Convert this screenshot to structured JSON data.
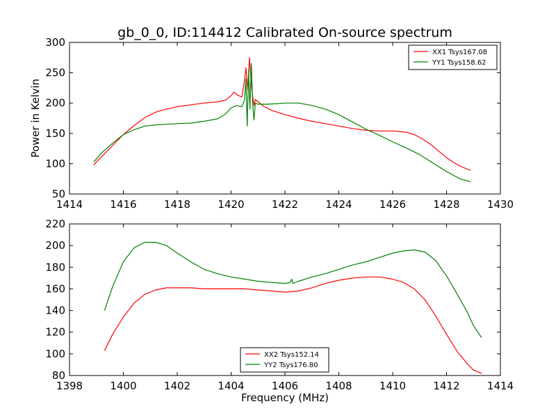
{
  "figure": {
    "title": "gb_0_0, ID:114412 Calibrated On-source spectrum"
  },
  "chart_data": [
    {
      "type": "line",
      "title": "gb_0_0, ID:114412 Calibrated On-source spectrum",
      "xlabel": "",
      "ylabel": "Power in Kelvin",
      "xlim": [
        1414,
        1430
      ],
      "ylim": [
        50,
        300
      ],
      "xticks": [
        1414,
        1416,
        1418,
        1420,
        1422,
        1424,
        1426,
        1428,
        1430
      ],
      "yticks": [
        50,
        100,
        150,
        200,
        250,
        300
      ],
      "grid": false,
      "legend_position": "top-right",
      "series": [
        {
          "name": "XX1 Tsys167.08",
          "color": "#ff0000",
          "x": [
            1414.9,
            1415.2,
            1415.6,
            1416.0,
            1416.4,
            1416.8,
            1417.2,
            1417.6,
            1418.0,
            1418.5,
            1419.0,
            1419.5,
            1419.8,
            1420.0,
            1420.1,
            1420.25,
            1420.4,
            1420.5,
            1420.55,
            1420.62,
            1420.68,
            1420.75,
            1420.8,
            1420.85,
            1420.9,
            1421.0,
            1421.2,
            1421.5,
            1422.0,
            1422.5,
            1423.0,
            1423.5,
            1424.0,
            1424.5,
            1425.0,
            1425.5,
            1426.0,
            1426.5,
            1426.8,
            1427.1,
            1427.4,
            1427.7,
            1428.0,
            1428.3,
            1428.6,
            1428.9
          ],
          "y": [
            98,
            112,
            130,
            148,
            163,
            176,
            185,
            190,
            194,
            197,
            200,
            202,
            205,
            212,
            218,
            213,
            210,
            238,
            258,
            222,
            275,
            230,
            212,
            196,
            206,
            202,
            195,
            188,
            181,
            175,
            170,
            166,
            162,
            158,
            155,
            154,
            154,
            152,
            148,
            141,
            132,
            121,
            110,
            101,
            94,
            89
          ]
        },
        {
          "name": "YY1 Tsys158.62",
          "color": "#008000",
          "x": [
            1414.9,
            1415.2,
            1415.6,
            1416.0,
            1416.4,
            1416.8,
            1417.2,
            1417.6,
            1418.0,
            1418.5,
            1419.0,
            1419.5,
            1419.8,
            1420.0,
            1420.2,
            1420.4,
            1420.5,
            1420.55,
            1420.6,
            1420.65,
            1420.7,
            1420.75,
            1420.8,
            1420.85,
            1420.9,
            1421.0,
            1421.3,
            1421.7,
            1422.0,
            1422.5,
            1423.0,
            1423.5,
            1424.0,
            1424.5,
            1425.0,
            1425.5,
            1426.0,
            1426.5,
            1427.0,
            1427.5,
            1428.0,
            1428.5,
            1428.9
          ],
          "y": [
            103,
            118,
            134,
            148,
            156,
            162,
            164,
            165,
            166,
            167,
            170,
            174,
            182,
            192,
            196,
            194,
            205,
            240,
            162,
            255,
            190,
            265,
            200,
            172,
            200,
            198,
            198,
            199,
            200,
            200,
            196,
            190,
            181,
            169,
            157,
            147,
            136,
            126,
            115,
            101,
            87,
            75,
            70
          ]
        }
      ]
    },
    {
      "type": "line",
      "title": "",
      "xlabel": "Frequency (MHz)",
      "ylabel": "",
      "xlim": [
        1398,
        1414
      ],
      "ylim": [
        80,
        220
      ],
      "xticks": [
        1398,
        1400,
        1402,
        1404,
        1406,
        1408,
        1410,
        1412,
        1414
      ],
      "yticks": [
        80,
        100,
        120,
        140,
        160,
        180,
        200,
        220
      ],
      "grid": false,
      "legend_position": "bottom-center",
      "series": [
        {
          "name": "XX2 Tsys152.14",
          "color": "#ff0000",
          "x": [
            1399.3,
            1399.6,
            1400.0,
            1400.4,
            1400.8,
            1401.2,
            1401.6,
            1402.0,
            1402.5,
            1403.0,
            1403.5,
            1404.0,
            1404.5,
            1405.0,
            1405.5,
            1406.0,
            1406.5,
            1407.0,
            1407.5,
            1408.0,
            1408.5,
            1409.0,
            1409.5,
            1410.0,
            1410.4,
            1410.8,
            1411.2,
            1411.6,
            1412.0,
            1412.4,
            1412.8,
            1413.0,
            1413.3
          ],
          "y": [
            103,
            118,
            134,
            147,
            155,
            159,
            161,
            161,
            161,
            160,
            160,
            160,
            160,
            159,
            158,
            157,
            158,
            161,
            165,
            168,
            170,
            171,
            171,
            169,
            166,
            160,
            150,
            135,
            118,
            102,
            90,
            85,
            82
          ]
        },
        {
          "name": "YY2 Tsys176.80",
          "color": "#008000",
          "x": [
            1399.3,
            1399.6,
            1400.0,
            1400.4,
            1400.8,
            1401.2,
            1401.6,
            1402.0,
            1402.5,
            1403.0,
            1403.5,
            1404.0,
            1404.5,
            1405.0,
            1405.5,
            1406.0,
            1406.2,
            1406.25,
            1406.3,
            1406.5,
            1407.0,
            1407.5,
            1408.0,
            1408.5,
            1409.0,
            1409.5,
            1410.0,
            1410.4,
            1410.8,
            1411.2,
            1411.6,
            1412.0,
            1412.4,
            1412.8,
            1413.0,
            1413.3
          ],
          "y": [
            140,
            162,
            185,
            198,
            203,
            203,
            200,
            193,
            185,
            178,
            174,
            171,
            169,
            167,
            166,
            165,
            166,
            169,
            165,
            167,
            171,
            174,
            178,
            182,
            185,
            189,
            193,
            195,
            196,
            194,
            186,
            172,
            155,
            137,
            126,
            115
          ]
        }
      ]
    }
  ]
}
